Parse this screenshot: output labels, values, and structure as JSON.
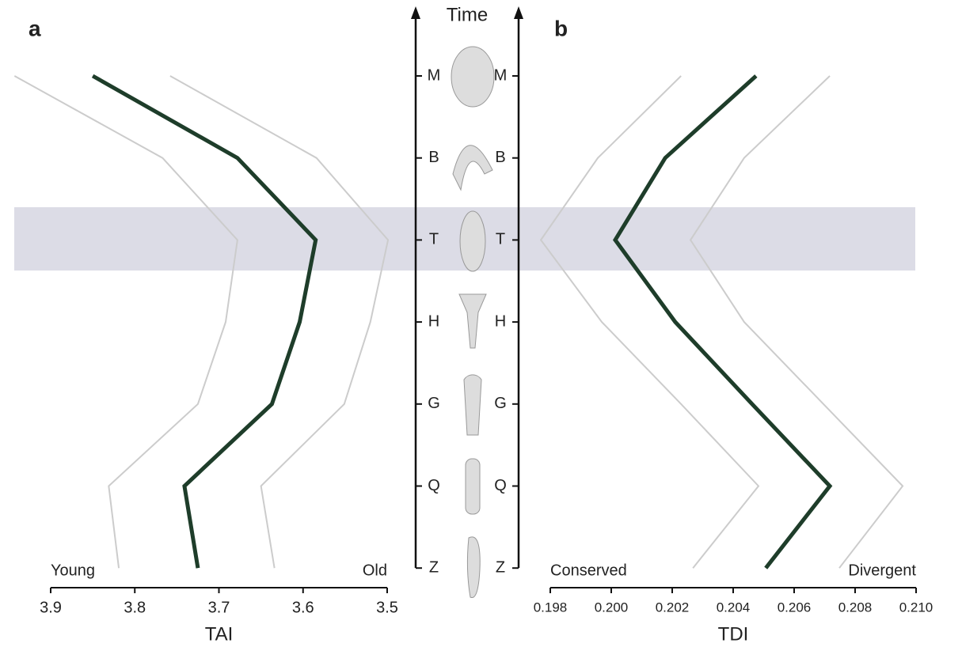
{
  "time_axis": {
    "title": "Time"
  },
  "chart_data": [
    {
      "type": "line",
      "panel": "a",
      "xlabel": "TAI",
      "left_label": "Young",
      "right_label": "Old",
      "xlim": [
        3.9,
        3.5
      ],
      "xticks": [
        3.9,
        3.8,
        3.7,
        3.6,
        3.5
      ],
      "categories": [
        "M",
        "B",
        "T",
        "H",
        "G",
        "Q",
        "Z"
      ],
      "series": [
        {
          "color": "#cccccc",
          "values": [
            3.943,
            3.767,
            3.678,
            3.692,
            3.725,
            3.831,
            3.819
          ]
        },
        {
          "color": "#cccccc",
          "values": [
            3.758,
            3.584,
            3.499,
            3.52,
            3.551,
            3.65,
            3.634
          ]
        },
        {
          "color": "#1e3d2a",
          "values": [
            3.85,
            3.678,
            3.585,
            3.604,
            3.637,
            3.741,
            3.725
          ]
        }
      ]
    },
    {
      "type": "line",
      "panel": "b",
      "xlabel": "TDI",
      "left_label": "Conserved",
      "right_label": "Divergent",
      "xlim": [
        0.198,
        0.21
      ],
      "xticks": [
        0.198,
        {
          "value": 0.2,
          "label": "0.200"
        },
        0.202,
        0.204,
        0.206,
        0.208,
        {
          "value": 0.21,
          "label": "0.210"
        }
      ],
      "categories": [
        "M",
        "B",
        "T",
        "H",
        "G",
        "Q",
        "Z"
      ],
      "series": [
        {
          "color": "#cccccc",
          "values": [
            0.20229,
            0.19956,
            0.19769,
            0.19969,
            0.20229,
            0.20483,
            0.20268
          ]
        },
        {
          "color": "#cccccc",
          "values": [
            0.20717,
            0.20436,
            0.2026,
            0.20436,
            0.20696,
            0.20956,
            0.20748
          ]
        },
        {
          "color": "#1e3d2a",
          "values": [
            0.20475,
            0.20177,
            0.20013,
            0.2021,
            0.20462,
            0.20717,
            0.20507
          ]
        }
      ]
    }
  ]
}
